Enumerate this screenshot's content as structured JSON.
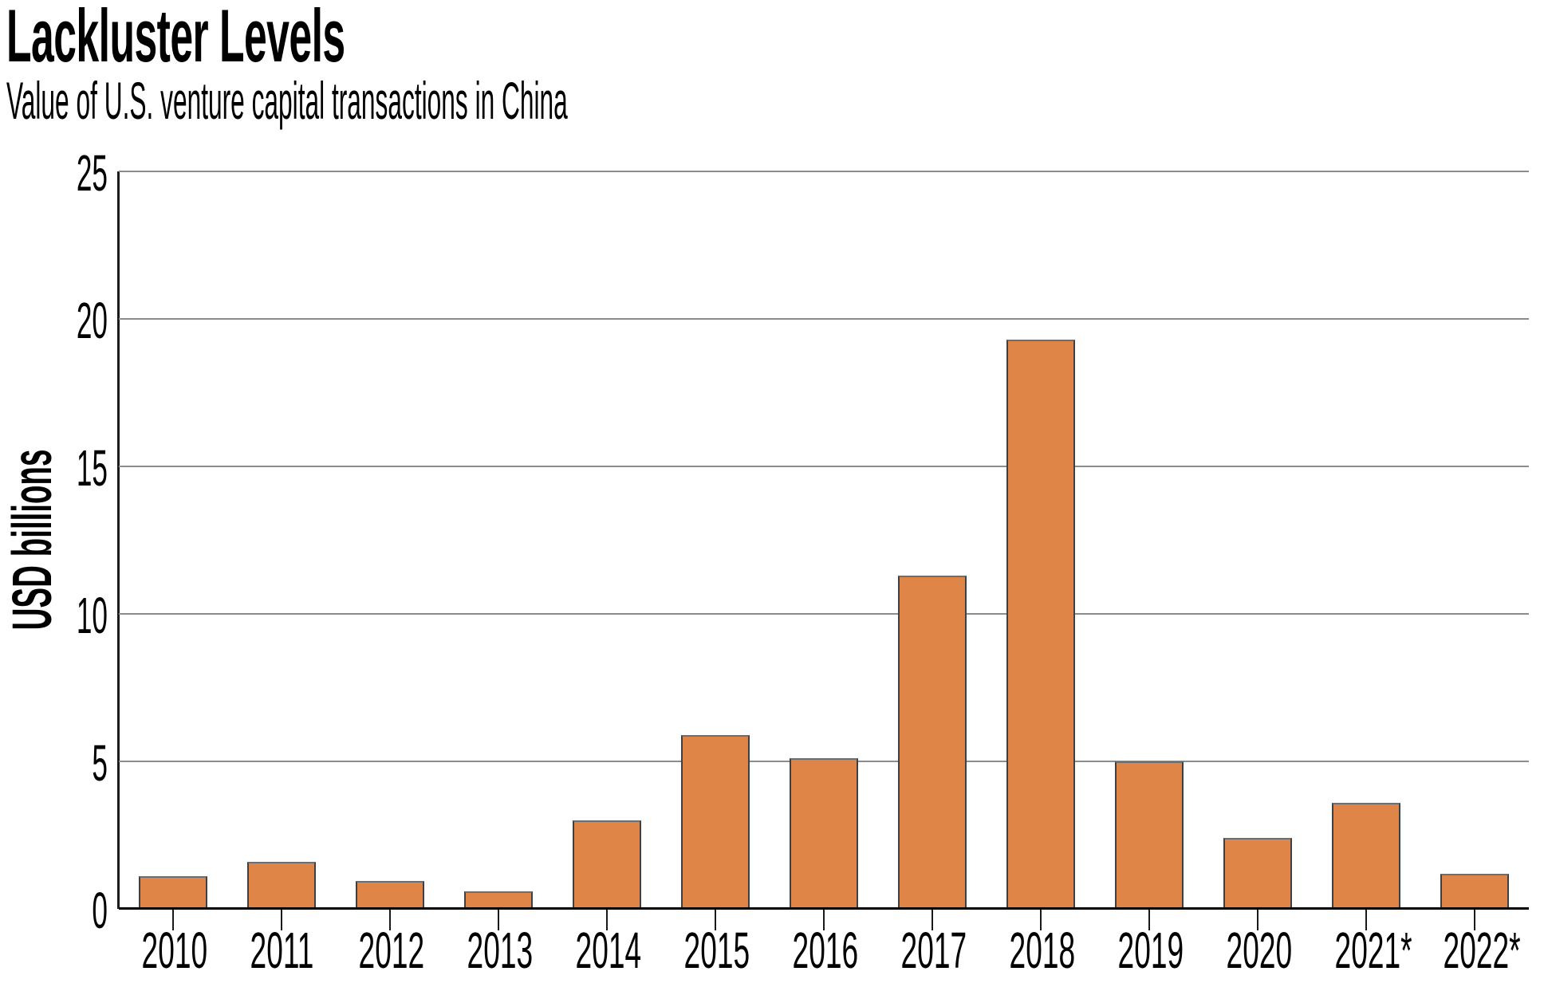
{
  "header": {
    "title": "Lackluster Levels",
    "subtitle": "Value of U.S. venture capital transactions in China"
  },
  "chart_data": {
    "type": "bar",
    "title": "Lackluster Levels",
    "subtitle": "Value of U.S. venture capital transactions in China",
    "categories": [
      "2010",
      "2011",
      "2012",
      "2013",
      "2014",
      "2015",
      "2016",
      "2017",
      "2018",
      "2019",
      "2020",
      "2021*",
      "2022*"
    ],
    "values": [
      1.1,
      1.6,
      0.95,
      0.6,
      3.0,
      5.9,
      5.1,
      11.3,
      19.3,
      5.0,
      2.4,
      3.6,
      1.2
    ],
    "xlabel": "",
    "ylabel": "USD billions",
    "ylim": [
      0,
      25
    ],
    "yticks": [
      0,
      5,
      10,
      15,
      20,
      25
    ],
    "grid": true,
    "legend": "none",
    "bar_color": "#E08548",
    "bar_border_color": "#3F3F3F",
    "bar_border_top_color": "#6E6E6E",
    "gridline_color": "#8C8C8C",
    "axis_color": "#000000"
  }
}
